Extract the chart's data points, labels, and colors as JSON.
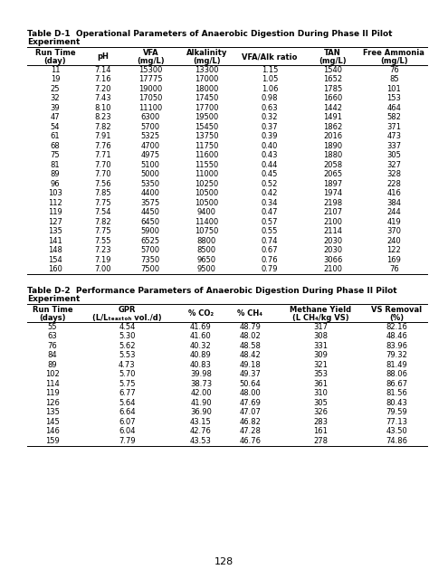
{
  "table1_title_line1": "Table D-1  Operational Parameters of Anaerobic Digestion During Phase II Pilot",
  "table1_title_line2": "Experiment",
  "table1_headers_line1": [
    "Run Time",
    "pH",
    "VFA",
    "Alkalinity",
    "VFA/Alk ratio",
    "TAN",
    "Free Ammonia"
  ],
  "table1_headers_line2": [
    "(day)",
    "",
    "(mg/L)",
    "(mg/L)",
    "",
    "(mg/L)",
    "(mg/L)"
  ],
  "table1_data": [
    [
      11,
      "7.14",
      15300,
      13300,
      "1.15",
      1540,
      76
    ],
    [
      19,
      "7.16",
      17775,
      17000,
      "1.05",
      1652,
      85
    ],
    [
      25,
      "7.20",
      19000,
      18000,
      "1.06",
      1785,
      101
    ],
    [
      32,
      "7.43",
      17050,
      17450,
      "0.98",
      1660,
      153
    ],
    [
      39,
      "8.10",
      11100,
      17700,
      "0.63",
      1442,
      464
    ],
    [
      47,
      "8.23",
      6300,
      19500,
      "0.32",
      1491,
      582
    ],
    [
      54,
      "7.82",
      5700,
      15450,
      "0.37",
      1862,
      371
    ],
    [
      61,
      "7.91",
      5325,
      13750,
      "0.39",
      2016,
      473
    ],
    [
      68,
      "7.76",
      4700,
      11750,
      "0.40",
      1890,
      337
    ],
    [
      75,
      "7.71",
      4975,
      11600,
      "0.43",
      1880,
      305
    ],
    [
      81,
      "7.70",
      5100,
      11550,
      "0.44",
      2058,
      327
    ],
    [
      89,
      "7.70",
      5000,
      11000,
      "0.45",
      2065,
      328
    ],
    [
      96,
      "7.56",
      5350,
      10250,
      "0.52",
      1897,
      228
    ],
    [
      103,
      "7.85",
      4400,
      10500,
      "0.42",
      1974,
      416
    ],
    [
      112,
      "7.75",
      3575,
      10500,
      "0.34",
      2198,
      384
    ],
    [
      119,
      "7.54",
      4450,
      9400,
      "0.47",
      2107,
      244
    ],
    [
      127,
      "7.82",
      6450,
      11400,
      "0.57",
      2100,
      419
    ],
    [
      135,
      "7.75",
      5900,
      10750,
      "0.55",
      2114,
      370
    ],
    [
      141,
      "7.55",
      6525,
      8800,
      "0.74",
      2030,
      240
    ],
    [
      148,
      "7.23",
      5700,
      8500,
      "0.67",
      2030,
      122
    ],
    [
      154,
      "7.19",
      7350,
      9650,
      "0.76",
      3066,
      169
    ],
    [
      160,
      "7.00",
      7500,
      9500,
      "0.79",
      2100,
      76
    ]
  ],
  "table2_title_line1": "Table D-2  Performance Parameters of Anaerobic Digestion During Phase II Pilot",
  "table2_title_line2": "Experiment",
  "table2_headers_line1": [
    "Run Time",
    "GPR",
    "% CO₂",
    "% CH₄",
    "Methane Yield",
    "VS Removal"
  ],
  "table2_headers_line2": [
    "(days)",
    "(L/Lₜₑₐₓₜₒₕ vol./d)",
    "",
    "",
    "(L CH₄/kg VS)",
    "(%)"
  ],
  "table2_data": [
    [
      55,
      "4.54",
      "41.69",
      "48.79",
      317,
      "82.16"
    ],
    [
      63,
      "5.30",
      "41.60",
      "48.02",
      308,
      "48.46"
    ],
    [
      76,
      "5.62",
      "40.32",
      "48.58",
      331,
      "83.96"
    ],
    [
      84,
      "5.53",
      "40.89",
      "48.42",
      309,
      "79.32"
    ],
    [
      89,
      "4.73",
      "40.83",
      "49.18",
      321,
      "81.49"
    ],
    [
      102,
      "5.70",
      "39.98",
      "49.37",
      353,
      "88.06"
    ],
    [
      114,
      "5.75",
      "38.73",
      "50.64",
      361,
      "86.67"
    ],
    [
      119,
      "6.77",
      "42.00",
      "48.00",
      310,
      "81.56"
    ],
    [
      126,
      "5.64",
      "41.90",
      "47.69",
      305,
      "80.43"
    ],
    [
      135,
      "6.64",
      "36.90",
      "47.07",
      326,
      "79.59"
    ],
    [
      145,
      "6.07",
      "43.15",
      "46.82",
      283,
      "77.13"
    ],
    [
      146,
      "6.04",
      "42.76",
      "47.28",
      161,
      "43.50"
    ],
    [
      159,
      "7.79",
      "43.53",
      "46.76",
      278,
      "74.86"
    ]
  ],
  "page_number": "128",
  "bg_color": "#ffffff",
  "text_color": "#000000",
  "line_color": "#000000"
}
